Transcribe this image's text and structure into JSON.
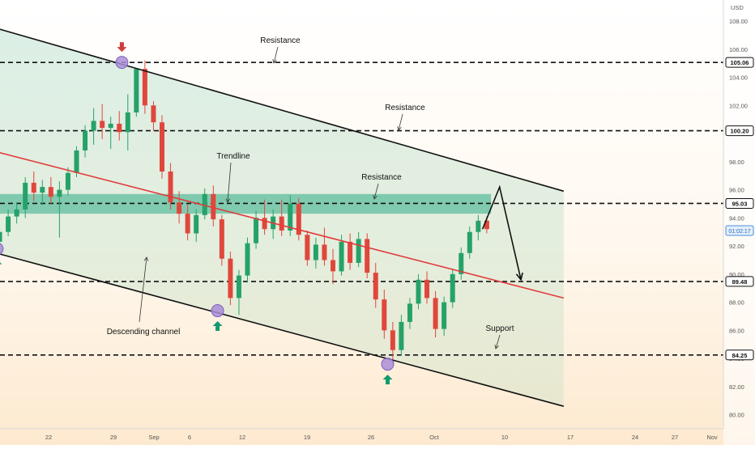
{
  "chart_data": {
    "type": "candlestick",
    "currency": "USD",
    "y_ticks": [
      "108.00",
      "106.00",
      "104.00",
      "102.00",
      "100.00",
      "98.00",
      "96.00",
      "94.00",
      "92.00",
      "90.00",
      "88.00",
      "86.00",
      "84.00",
      "82.00",
      "80.00"
    ],
    "x_ticks": [
      "22",
      "29",
      "Sep",
      "6",
      "12",
      "19",
      "26",
      "Oct",
      "10",
      "17",
      "24",
      "27",
      "Nov"
    ],
    "ylim": [
      79.0,
      109.5
    ],
    "price_badges": [
      {
        "label": "105.06",
        "value": 105.06,
        "style": "level"
      },
      {
        "label": "100.20",
        "value": 100.2,
        "style": "level"
      },
      {
        "label": "95.03",
        "value": 95.03,
        "style": "level"
      },
      {
        "label": "01:02:17",
        "value": 93.1,
        "style": "timer"
      },
      {
        "label": "89.48",
        "value": 89.48,
        "style": "level"
      },
      {
        "label": "84.25",
        "value": 84.25,
        "style": "level"
      }
    ],
    "horizontal_levels": [
      105.06,
      100.2,
      95.03,
      89.48,
      84.25
    ],
    "resistance_zone": [
      94.3,
      95.7
    ],
    "annotations": [
      "Resistance",
      "Resistance",
      "Resistance",
      "Trendline",
      "Descending channel",
      "Support"
    ],
    "channel": {
      "upper": [
        {
          "day": 0,
          "price": 107.6
        },
        {
          "day": 67,
          "price": 95.9
        }
      ],
      "lower": [
        {
          "day": 0,
          "price": 91.6
        },
        {
          "day": 67,
          "price": 80.6
        }
      ],
      "mid": [
        {
          "day": 0,
          "price": 98.8
        },
        {
          "day": 67,
          "price": 88.3
        }
      ]
    },
    "projection": [
      {
        "day": 57.5,
        "price": 93.2
      },
      {
        "day": 59.5,
        "price": 96.2
      },
      {
        "day": 62.0,
        "price": 89.6
      }
    ],
    "pivots": [
      {
        "day": 0.7,
        "price": 91.8,
        "marker": "up"
      },
      {
        "day": 15.3,
        "price": 105.06,
        "marker": "down"
      },
      {
        "day": 26.5,
        "price": 87.4,
        "marker": "up"
      },
      {
        "day": 46.4,
        "price": 83.6,
        "marker": "up"
      }
    ],
    "candles": [
      [
        92.3,
        93.4,
        91.5,
        93.0
      ],
      [
        93.0,
        94.6,
        92.7,
        94.1
      ],
      [
        94.1,
        95.1,
        93.6,
        94.6
      ],
      [
        94.6,
        96.9,
        94.0,
        96.5
      ],
      [
        96.5,
        97.3,
        95.2,
        95.8
      ],
      [
        95.8,
        96.7,
        94.9,
        96.2
      ],
      [
        96.2,
        96.9,
        95.0,
        95.5
      ],
      [
        95.5,
        96.6,
        92.6,
        96.0
      ],
      [
        96.0,
        97.6,
        95.6,
        97.2
      ],
      [
        97.2,
        99.1,
        96.9,
        98.8
      ],
      [
        98.8,
        100.6,
        98.3,
        100.2
      ],
      [
        100.2,
        101.8,
        99.2,
        100.9
      ],
      [
        100.9,
        102.1,
        99.6,
        100.4
      ],
      [
        100.4,
        101.2,
        98.9,
        100.7
      ],
      [
        100.7,
        101.6,
        99.5,
        100.1
      ],
      [
        100.1,
        102.8,
        98.8,
        101.5
      ],
      [
        101.5,
        104.6,
        101.2,
        104.6
      ],
      [
        104.6,
        105.2,
        101.4,
        102.0
      ],
      [
        102.0,
        102.3,
        100.2,
        100.8
      ],
      [
        100.8,
        101.3,
        96.8,
        97.3
      ],
      [
        97.3,
        97.9,
        94.6,
        95.1
      ],
      [
        95.1,
        95.9,
        93.6,
        94.3
      ],
      [
        94.3,
        95.0,
        92.4,
        92.9
      ],
      [
        92.9,
        94.6,
        92.3,
        94.2
      ],
      [
        94.2,
        96.1,
        93.9,
        95.7
      ],
      [
        95.7,
        96.3,
        93.4,
        93.9
      ],
      [
        93.9,
        94.2,
        90.6,
        91.1
      ],
      [
        91.1,
        91.6,
        87.8,
        88.3
      ],
      [
        88.3,
        90.3,
        87.1,
        89.9
      ],
      [
        89.9,
        92.6,
        89.4,
        92.2
      ],
      [
        92.2,
        94.5,
        91.8,
        94.0
      ],
      [
        94.0,
        95.3,
        92.8,
        93.2
      ],
      [
        93.2,
        94.6,
        92.5,
        94.1
      ],
      [
        94.1,
        95.3,
        92.7,
        93.1
      ],
      [
        93.1,
        95.6,
        92.7,
        95.0
      ],
      [
        95.0,
        95.4,
        92.4,
        92.8
      ],
      [
        92.8,
        93.1,
        90.6,
        91.0
      ],
      [
        91.0,
        92.6,
        90.4,
        92.1
      ],
      [
        92.1,
        93.3,
        90.6,
        91.0
      ],
      [
        91.0,
        91.8,
        89.3,
        90.2
      ],
      [
        90.2,
        92.8,
        89.9,
        92.3
      ],
      [
        92.3,
        92.9,
        90.3,
        90.8
      ],
      [
        90.8,
        93.0,
        90.5,
        92.5
      ],
      [
        92.5,
        92.9,
        89.7,
        90.1
      ],
      [
        90.1,
        90.8,
        87.6,
        88.2
      ],
      [
        88.2,
        88.9,
        85.4,
        86.0
      ],
      [
        86.0,
        86.6,
        83.6,
        84.6
      ],
      [
        84.6,
        87.1,
        84.2,
        86.6
      ],
      [
        86.6,
        88.3,
        86.1,
        87.9
      ],
      [
        87.9,
        90.0,
        87.5,
        89.6
      ],
      [
        89.6,
        90.2,
        87.9,
        88.3
      ],
      [
        88.3,
        88.8,
        85.5,
        86.1
      ],
      [
        86.1,
        88.4,
        85.6,
        88.0
      ],
      [
        88.0,
        90.4,
        87.6,
        90.0
      ],
      [
        90.0,
        91.9,
        89.6,
        91.5
      ],
      [
        91.5,
        93.4,
        91.1,
        93.0
      ],
      [
        93.0,
        94.2,
        92.4,
        93.8
      ],
      [
        93.8,
        94.1,
        92.9,
        93.2
      ]
    ]
  }
}
